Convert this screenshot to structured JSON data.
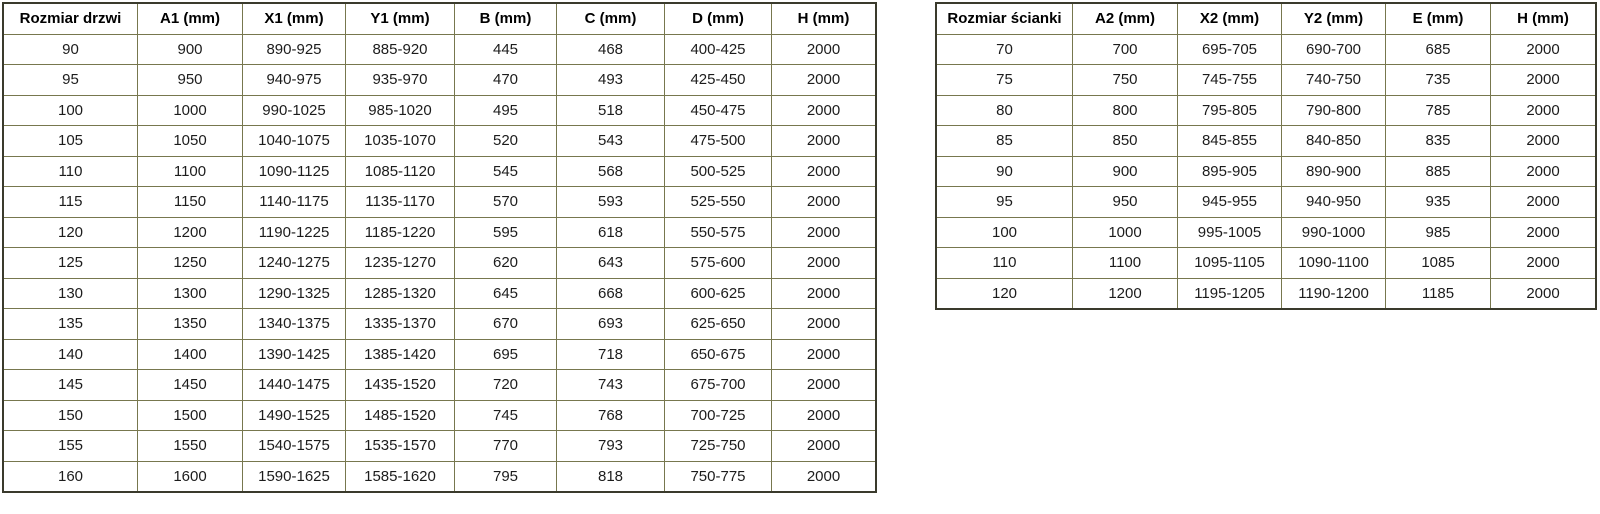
{
  "colors": {
    "grid_line": "#77774e",
    "outer_border": "#3a3a2c",
    "text": "#1c1c1c",
    "background": "#ffffff"
  },
  "left_table": {
    "headers": [
      "Rozmiar drzwi",
      "A1 (mm)",
      "X1 (mm)",
      "Y1 (mm)",
      "B (mm)",
      "C (mm)",
      "D (mm)",
      "H (mm)"
    ],
    "rows": [
      [
        "90",
        "900",
        "890-925",
        "885-920",
        "445",
        "468",
        "400-425",
        "2000"
      ],
      [
        "95",
        "950",
        "940-975",
        "935-970",
        "470",
        "493",
        "425-450",
        "2000"
      ],
      [
        "100",
        "1000",
        "990-1025",
        "985-1020",
        "495",
        "518",
        "450-475",
        "2000"
      ],
      [
        "105",
        "1050",
        "1040-1075",
        "1035-1070",
        "520",
        "543",
        "475-500",
        "2000"
      ],
      [
        "110",
        "1100",
        "1090-1125",
        "1085-1120",
        "545",
        "568",
        "500-525",
        "2000"
      ],
      [
        "115",
        "1150",
        "1140-1175",
        "1135-1170",
        "570",
        "593",
        "525-550",
        "2000"
      ],
      [
        "120",
        "1200",
        "1190-1225",
        "1185-1220",
        "595",
        "618",
        "550-575",
        "2000"
      ],
      [
        "125",
        "1250",
        "1240-1275",
        "1235-1270",
        "620",
        "643",
        "575-600",
        "2000"
      ],
      [
        "130",
        "1300",
        "1290-1325",
        "1285-1320",
        "645",
        "668",
        "600-625",
        "2000"
      ],
      [
        "135",
        "1350",
        "1340-1375",
        "1335-1370",
        "670",
        "693",
        "625-650",
        "2000"
      ],
      [
        "140",
        "1400",
        "1390-1425",
        "1385-1420",
        "695",
        "718",
        "650-675",
        "2000"
      ],
      [
        "145",
        "1450",
        "1440-1475",
        "1435-1520",
        "720",
        "743",
        "675-700",
        "2000"
      ],
      [
        "150",
        "1500",
        "1490-1525",
        "1485-1520",
        "745",
        "768",
        "700-725",
        "2000"
      ],
      [
        "155",
        "1550",
        "1540-1575",
        "1535-1570",
        "770",
        "793",
        "725-750",
        "2000"
      ],
      [
        "160",
        "1600",
        "1590-1625",
        "1585-1620",
        "795",
        "818",
        "750-775",
        "2000"
      ]
    ]
  },
  "right_table": {
    "headers": [
      "Rozmiar ścianki",
      "A2 (mm)",
      "X2 (mm)",
      "Y2 (mm)",
      "E (mm)",
      "H (mm)"
    ],
    "rows": [
      [
        "70",
        "700",
        "695-705",
        "690-700",
        "685",
        "2000"
      ],
      [
        "75",
        "750",
        "745-755",
        "740-750",
        "735",
        "2000"
      ],
      [
        "80",
        "800",
        "795-805",
        "790-800",
        "785",
        "2000"
      ],
      [
        "85",
        "850",
        "845-855",
        "840-850",
        "835",
        "2000"
      ],
      [
        "90",
        "900",
        "895-905",
        "890-900",
        "885",
        "2000"
      ],
      [
        "95",
        "950",
        "945-955",
        "940-950",
        "935",
        "2000"
      ],
      [
        "100",
        "1000",
        "995-1005",
        "990-1000",
        "985",
        "2000"
      ],
      [
        "110",
        "1100",
        "1095-1105",
        "1090-1100",
        "1085",
        "2000"
      ],
      [
        "120",
        "1200",
        "1195-1205",
        "1190-1200",
        "1185",
        "2000"
      ]
    ]
  }
}
